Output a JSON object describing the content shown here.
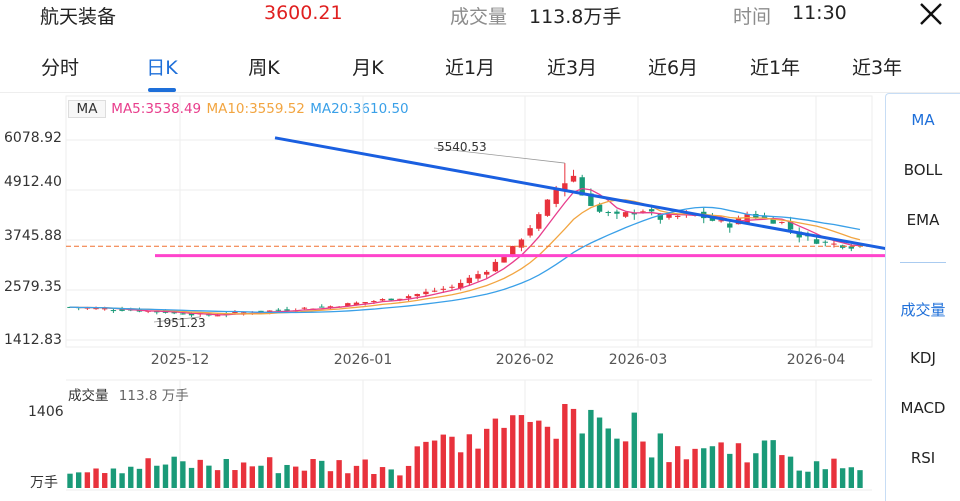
{
  "header": {
    "stock_name": "航天装备",
    "price": "3600.21",
    "volume_label": "成交量",
    "volume_value": "113.8万手",
    "time_label": "时间",
    "time_value": "11:30",
    "close_icon": "close-icon"
  },
  "tabs": [
    "分时",
    "日K",
    "周K",
    "月K",
    "近1月",
    "近3月",
    "近6月",
    "近1年",
    "近3年"
  ],
  "active_tab": "日K",
  "ma_legend": {
    "ma": "MA",
    "ma5": "MA5:3538.49",
    "ma10": "MA10:3559.52",
    "ma20": "MA20:3610.50"
  },
  "price_axis": [
    "6078.92",
    "4912.40",
    "3745.88",
    "2579.35",
    "1412.83"
  ],
  "annotations": {
    "high": "5540.53",
    "low": "1951.23"
  },
  "date_axis": [
    "2025-12",
    "2026-01",
    "2026-02",
    "2026-03",
    "2026-04"
  ],
  "volume": {
    "title": "成交量",
    "value": "113.8 万手",
    "max_label": "1406",
    "unit_label": "万手"
  },
  "side_panel": {
    "main_indicators": [
      "MA",
      "BOLL",
      "EMA"
    ],
    "sub_indicators": [
      "成交量",
      "KDJ",
      "MACD",
      "RSI"
    ],
    "active_main": "MA",
    "active_sub": "成交量"
  },
  "colors": {
    "up": "#e8323c",
    "down": "#1a9a78",
    "ma5": "#e83e8c",
    "ma10": "#f2a541",
    "ma20": "#3aa0e8",
    "accent": "#1e6fd9",
    "trendline": "#1a5fe0",
    "support": "#ff44cc",
    "reference": "#f07030"
  },
  "chart_data": {
    "type": "candlestick",
    "ylim": [
      1412.83,
      6078.92
    ],
    "y_ticks": [
      6078.92,
      4912.4,
      3745.88,
      2579.35,
      1412.83
    ],
    "x_ticks": [
      "2025-12",
      "2026-01",
      "2026-02",
      "2026-03",
      "2026-04"
    ],
    "high_point": 5540.53,
    "low_point": 1951.23,
    "reference_level": 3600.21,
    "support_level": 3380,
    "trendline_start": 6130,
    "trendline_end": 3230,
    "ma_last": {
      "MA5": 3538.49,
      "MA10": 3559.52,
      "MA20": 3610.5
    },
    "volume_max": 1406,
    "last_volume": 113.8
  }
}
